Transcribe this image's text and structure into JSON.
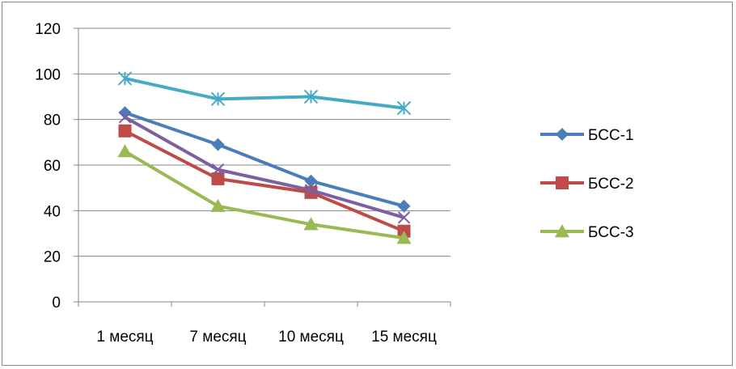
{
  "chart_data": {
    "type": "line",
    "categories": [
      "1 месяц",
      "7 месяц",
      "10 месяц",
      "15 месяц"
    ],
    "ylim": [
      0,
      120
    ],
    "yticks": [
      0,
      20,
      40,
      60,
      80,
      100,
      120
    ],
    "grid": true,
    "legend_position": "right",
    "series": [
      {
        "name": "БСС-1",
        "values": [
          83,
          69,
          53,
          42
        ],
        "color": "#4a7ebb",
        "marker": "diamond"
      },
      {
        "name": "БСС-2",
        "values": [
          75,
          54,
          48,
          31
        ],
        "color": "#be4b48",
        "marker": "square"
      },
      {
        "name": "БСС-3",
        "values": [
          66,
          42,
          34,
          28
        ],
        "color": "#98b954",
        "marker": "triangle"
      },
      {
        "name": "",
        "values": [
          81,
          58,
          49,
          37
        ],
        "color": "#7d60a0",
        "marker": "x",
        "in_legend": false
      },
      {
        "name": "",
        "values": [
          98,
          89,
          90,
          85
        ],
        "color": "#46aac5",
        "marker": "star",
        "in_legend": false
      }
    ]
  }
}
